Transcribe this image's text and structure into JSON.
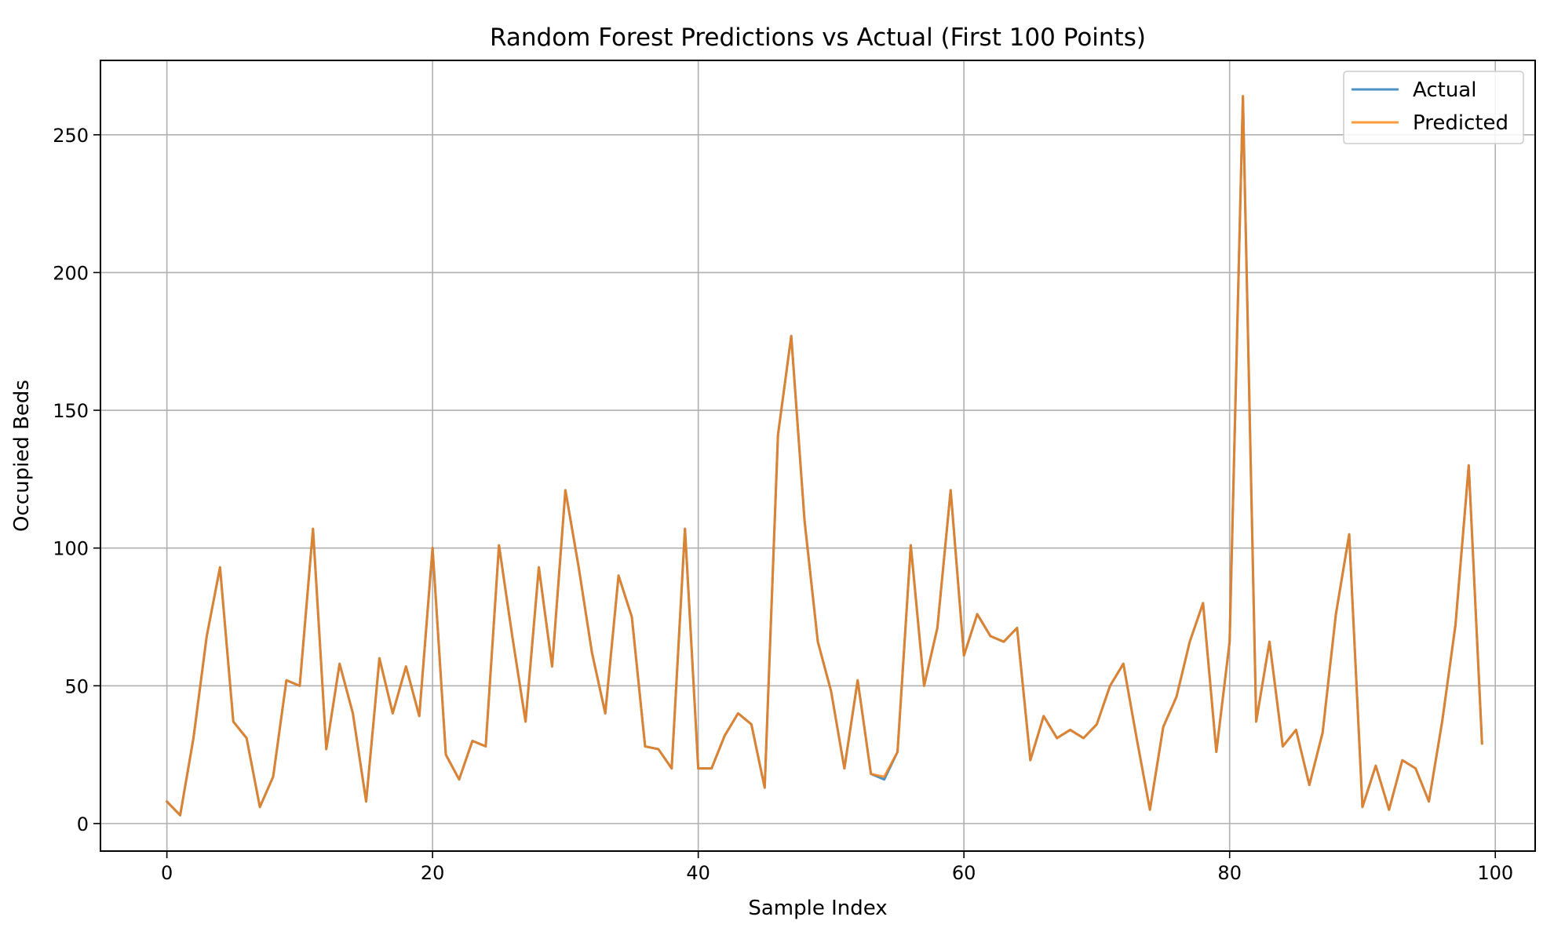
{
  "chart_data": {
    "type": "line",
    "title": "Random Forest Predictions vs Actual (First 100 Points)",
    "xlabel": "Sample Index",
    "ylabel": "Occupied Beds",
    "xlim": [
      -5,
      103
    ],
    "ylim": [
      -10,
      277
    ],
    "xticks": [
      0,
      20,
      40,
      60,
      80,
      100
    ],
    "yticks": [
      0,
      50,
      100,
      150,
      200,
      250
    ],
    "grid": true,
    "legend": "top-right",
    "series": [
      {
        "name": "Actual",
        "color": "#1f77b4",
        "values": [
          8,
          3,
          31,
          68,
          93,
          37,
          31,
          6,
          17,
          52,
          50,
          107,
          27,
          58,
          40,
          8,
          60,
          40,
          57,
          39,
          100,
          25,
          16,
          30,
          28,
          101,
          68,
          37,
          93,
          57,
          121,
          93,
          62,
          40,
          90,
          75,
          28,
          27,
          20,
          107,
          20,
          20,
          32,
          40,
          36,
          13,
          141,
          177,
          110,
          66,
          48,
          20,
          52,
          18,
          16,
          26,
          101,
          50,
          71,
          121,
          61,
          76,
          68,
          66,
          71,
          23,
          39,
          31,
          34,
          31,
          36,
          50,
          58,
          31,
          5,
          35,
          46,
          66,
          80,
          26,
          66,
          264,
          37,
          66,
          28,
          34,
          14,
          33,
          76,
          105,
          6,
          21,
          5,
          23,
          20,
          8,
          37,
          72,
          130,
          29
        ]
      },
      {
        "name": "Predicted",
        "color": "#ff7f0e",
        "values": [
          8,
          3,
          31,
          68,
          93,
          37,
          31,
          6,
          17,
          52,
          50,
          107,
          27,
          58,
          40,
          8,
          60,
          40,
          57,
          39,
          100,
          25,
          16,
          30,
          28,
          101,
          68,
          37,
          93,
          57,
          121,
          93,
          62,
          40,
          90,
          75,
          28,
          27,
          20,
          107,
          20,
          20,
          32,
          40,
          36,
          13,
          141,
          177,
          110,
          66,
          48,
          20,
          52,
          18,
          17,
          26,
          101,
          50,
          71,
          121,
          61,
          76,
          68,
          66,
          71,
          23,
          39,
          31,
          34,
          31,
          36,
          50,
          58,
          31,
          5,
          35,
          46,
          66,
          80,
          26,
          66,
          264,
          37,
          66,
          28,
          34,
          14,
          33,
          76,
          105,
          6,
          21,
          5,
          23,
          20,
          8,
          37,
          72,
          130,
          29
        ]
      }
    ]
  }
}
